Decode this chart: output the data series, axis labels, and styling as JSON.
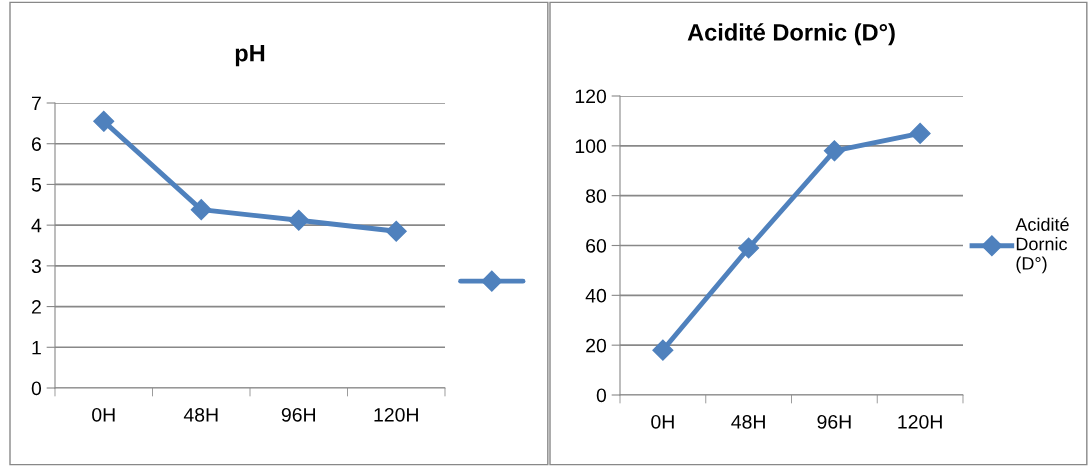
{
  "chart_data": [
    {
      "type": "line",
      "title": "pH",
      "categories": [
        "0H",
        "48H",
        "96H",
        "120H"
      ],
      "series": [
        {
          "color": "#4f81bd",
          "values": [
            6.55,
            4.38,
            4.12,
            3.85
          ]
        }
      ],
      "ylim": [
        0,
        7
      ],
      "yticks": [
        0,
        1,
        2,
        3,
        4,
        5,
        6,
        7
      ],
      "grid": "y",
      "marker": "diamond",
      "line_style": "solid"
    },
    {
      "type": "line",
      "title": "Acidité Dornic (D°)",
      "categories": [
        "0H",
        "48H",
        "96H",
        "120H"
      ],
      "series": [
        {
          "name": "Acidité\nDornic\n(D°)",
          "color": "#4f81bd",
          "values": [
            18,
            59,
            98,
            105
          ]
        }
      ],
      "ylim": [
        0,
        120
      ],
      "yticks": [
        0,
        20,
        40,
        60,
        80,
        100,
        120
      ],
      "grid": "y",
      "legend": "right",
      "marker": "diamond",
      "line_style": "solid"
    }
  ]
}
